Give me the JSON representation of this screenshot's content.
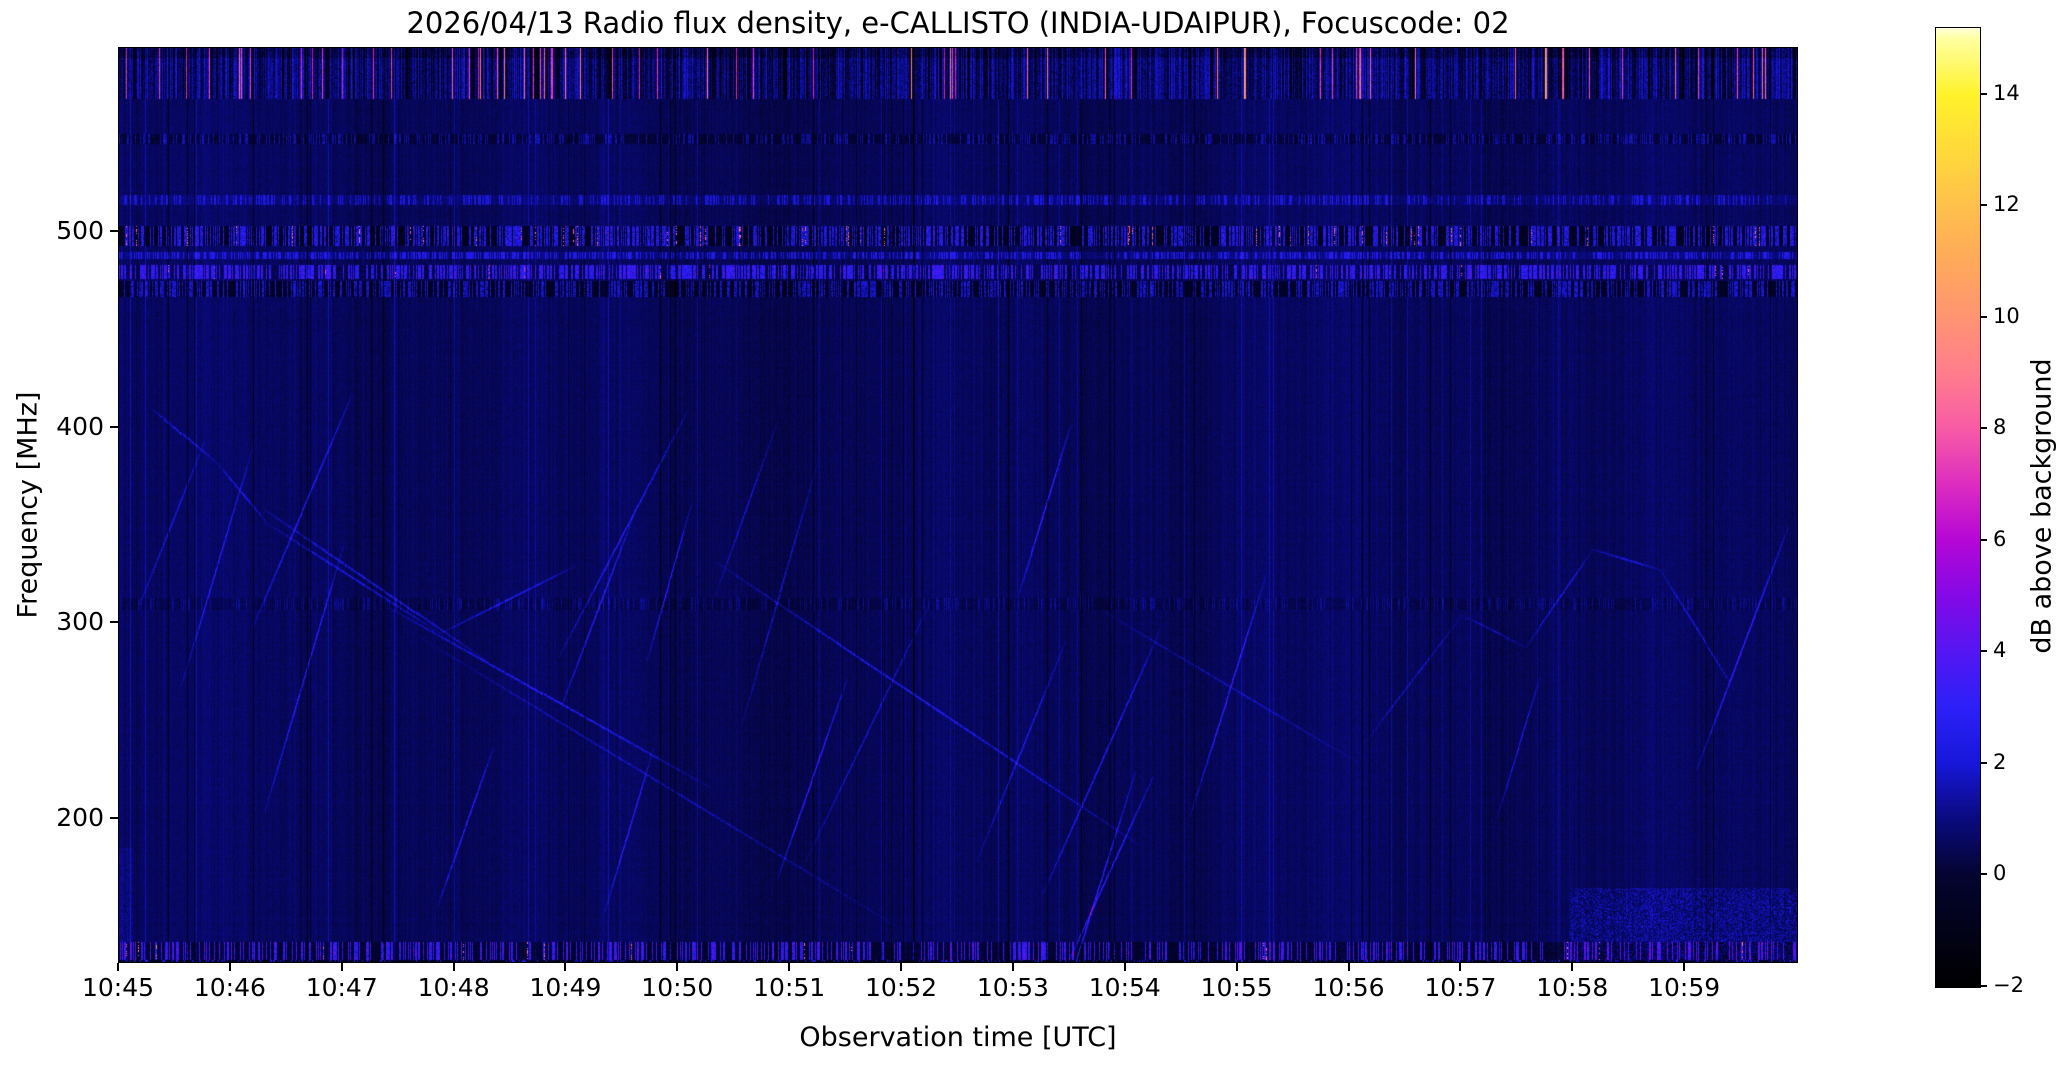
{
  "chart_data": {
    "type": "heatmap",
    "subtype": "radio-spectrogram",
    "title": "2026/04/13  Radio flux density, e-CALLISTO (INDIA-UDAIPUR), Focuscode: 02",
    "xlabel": "Observation time [UTC]",
    "ylabel": "Frequency [MHz]",
    "x_ticks": [
      "10:45",
      "10:46",
      "10:47",
      "10:48",
      "10:49",
      "10:50",
      "10:51",
      "10:52",
      "10:53",
      "10:54",
      "10:55",
      "10:56",
      "10:57",
      "10:58",
      "10:59"
    ],
    "x_minutes_span": 15,
    "y_ticks": [
      {
        "value": 500,
        "label": "500"
      },
      {
        "value": 400,
        "label": "400"
      },
      {
        "value": 300,
        "label": "300"
      },
      {
        "value": 200,
        "label": "200"
      }
    ],
    "freq_top_mhz": 594,
    "freq_bottom_mhz": 127,
    "grid": false,
    "legend": "none",
    "background_db": 0.55,
    "colorbar": {
      "label": "dB above background",
      "vmin": -2,
      "vmax": 15.2,
      "ticks": [
        {
          "value": 14,
          "label": "14"
        },
        {
          "value": 12,
          "label": "12"
        },
        {
          "value": 10,
          "label": "10"
        },
        {
          "value": 8,
          "label": "8"
        },
        {
          "value": 6,
          "label": "6"
        },
        {
          "value": 4,
          "label": "4"
        },
        {
          "value": 2,
          "label": "2"
        },
        {
          "value": 0,
          "label": "0"
        },
        {
          "value": -2,
          "label": "−2"
        }
      ],
      "stops": [
        [
          -2,
          "#000000"
        ],
        [
          0,
          "#040430"
        ],
        [
          1,
          "#0a0a7e"
        ],
        [
          2,
          "#1717d8"
        ],
        [
          3,
          "#2b20f8"
        ],
        [
          4,
          "#5416f2"
        ],
        [
          5,
          "#8309e6"
        ],
        [
          6,
          "#b407d6"
        ],
        [
          7,
          "#dc2cc0"
        ],
        [
          8,
          "#f75ba6"
        ],
        [
          9,
          "#ff7d8d"
        ],
        [
          10,
          "#ff9472"
        ],
        [
          11,
          "#ffa95b"
        ],
        [
          12,
          "#ffc04b"
        ],
        [
          13,
          "#ffd93a"
        ],
        [
          14,
          "#fff22b"
        ],
        [
          15,
          "#ffffa0"
        ],
        [
          15.2,
          "#ffffd8"
        ]
      ]
    },
    "bands": [
      {
        "f1": 594,
        "f2": 568,
        "mode": "top"
      },
      {
        "f1": 550,
        "f2": 545,
        "add": -0.55,
        "noise": 0.45,
        "sp": 0.3,
        "spv": 1.4
      },
      {
        "f1": 519,
        "f2": 514,
        "add": 0.3,
        "noise": 0.4,
        "sp": 0.3,
        "spv": 1.3
      },
      {
        "f1": 503,
        "f2": 493,
        "add": -1.1,
        "noise": 0.7,
        "sp": 0.45,
        "spv": 2.8,
        "hot": 0.03,
        "hotv": 7.5
      },
      {
        "f1": 490,
        "f2": 486,
        "add": 0.4,
        "noise": 0.4,
        "sp": 0.35,
        "spv": 1.5
      },
      {
        "f1": 483,
        "f2": 476,
        "add": -0.2,
        "noise": 0.6,
        "sp": 0.5,
        "spv": 2.6,
        "hot": 0.008,
        "hotv": 6.8
      },
      {
        "f1": 475,
        "f2": 467,
        "add": -1.0,
        "noise": 0.6,
        "sp": 0.4,
        "spv": 2.2
      },
      {
        "f1": 313,
        "f2": 307,
        "add": -0.25,
        "noise": 0.2,
        "sp": 0.25,
        "spv": 0.8
      },
      {
        "f1": 137,
        "f2": 128,
        "add": -0.6,
        "noise": 0.5,
        "sp": 0.3,
        "spv": 3.2,
        "hot": 0.01,
        "hotv": 7.8
      },
      {
        "f1": 128,
        "f2": 127,
        "add": -1.2,
        "noise": 0.4,
        "sp": 0.2,
        "spv": 2.5
      }
    ],
    "streaks": {
      "count": 26,
      "fmin": 140,
      "fmax": 360,
      "asc_frac": 0.72,
      "asc_slope": [
        1.8,
        3.6
      ],
      "desc_slope": [
        0.55,
        0.95
      ],
      "vlen": [
        140,
        300
      ],
      "amp": [
        0.8,
        1.7
      ]
    },
    "arcs": [
      {
        "pts": [
          [
            0.0185,
            0.393
          ],
          [
            0.0584,
            0.454
          ],
          [
            0.0882,
            0.52
          ],
          [
            0.1913,
            0.64
          ],
          [
            0.2718,
            0.566
          ]
        ],
        "amp": 1.25
      },
      {
        "pts": [
          [
            0.838,
            0.655
          ],
          [
            0.878,
            0.548
          ],
          [
            0.918,
            0.57
          ],
          [
            0.962,
            0.7
          ]
        ],
        "amp": 1.15
      },
      {
        "pts": [
          [
            0.742,
            0.76
          ],
          [
            0.8,
            0.62
          ],
          [
            0.838,
            0.655
          ]
        ],
        "amp": 0.9
      }
    ],
    "hot_columns_top": [
      0.671,
      0.85
    ]
  }
}
